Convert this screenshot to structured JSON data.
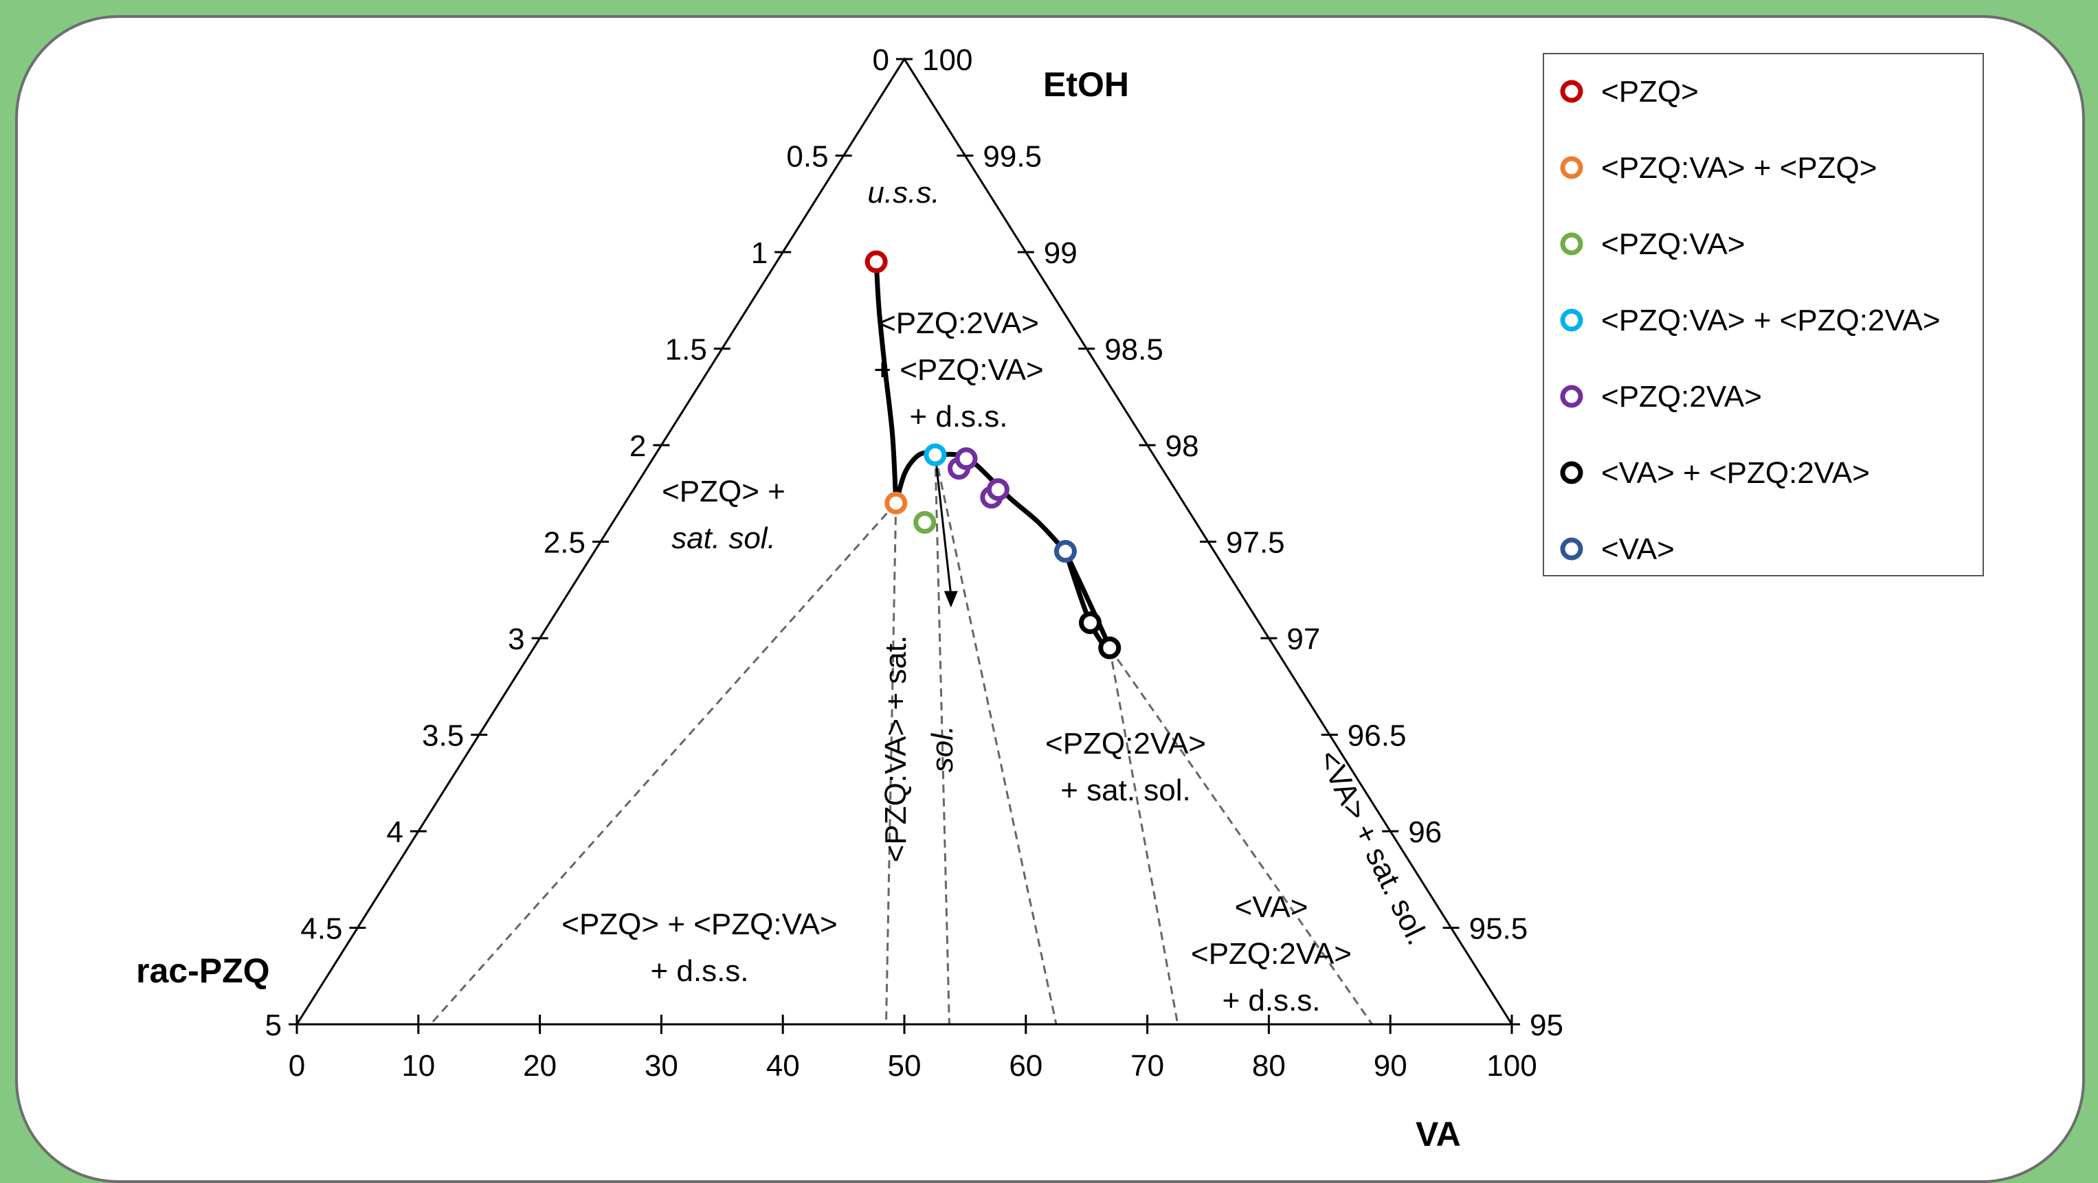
{
  "chart_data": {
    "type": "ternary",
    "vertex_labels": {
      "top": "EtOH",
      "left": "rac-PZQ",
      "right": "VA"
    },
    "bottom_axis_ticks": [
      "0",
      "10",
      "20",
      "30",
      "40",
      "50",
      "60",
      "70",
      "80",
      "90",
      "100"
    ],
    "left_axis_ticks": [
      "0",
      "0.5",
      "1",
      "1.5",
      "2",
      "2.5",
      "3",
      "3.5",
      "4",
      "4.5",
      "5"
    ],
    "right_axis_ticks": [
      "100",
      "99.5",
      "99",
      "98.5",
      "98",
      "97.5",
      "97",
      "96.5",
      "96",
      "95.5",
      "95"
    ],
    "legend": [
      {
        "label": "<PZQ>",
        "color": "#c00000"
      },
      {
        "label": "<PZQ:VA> + <PZQ>",
        "color": "#ed7d31"
      },
      {
        "label": "<PZQ:VA>",
        "color": "#70ad47"
      },
      {
        "label": "<PZQ:VA> + <PZQ:2VA>",
        "color": "#00b0f0"
      },
      {
        "label": "<PZQ:2VA>",
        "color": "#7030a0"
      },
      {
        "label": "<VA> + <PZQ:2VA>",
        "color": "#000000"
      },
      {
        "label": "<VA>",
        "color": "#2f5597"
      }
    ],
    "points": [
      {
        "phase": "<PZQ>",
        "x": 39,
        "y": 1.05
      },
      {
        "phase": "<PZQ:VA> + <PZQ>",
        "x": 48.5,
        "y": 2.3
      },
      {
        "phase": "<PZQ:VA>",
        "x": 53.5,
        "y": 2.4
      },
      {
        "phase": "<PZQ:VA> + <PZQ:2VA>",
        "x": 56.2,
        "y": 2.05
      },
      {
        "phase": "<PZQ:2VA>",
        "x": 60.6,
        "y": 2.12
      },
      {
        "phase": "<PZQ:2VA>",
        "x": 62.3,
        "y": 2.07
      },
      {
        "phase": "<PZQ:2VA>",
        "x": 65.8,
        "y": 2.27
      },
      {
        "phase": "<PZQ:2VA>",
        "x": 67.3,
        "y": 2.23
      },
      {
        "phase": "<VA> + <PZQ:2VA>",
        "x": 76.2,
        "y": 2.92
      },
      {
        "phase": "<VA> + <PZQ:2VA>",
        "x": 77.7,
        "y": 3.05
      },
      {
        "phase": "<VA>",
        "x": 76.0,
        "y": 2.55
      }
    ],
    "solubility_curve": [
      [
        39,
        1.05
      ],
      [
        42,
        1.3
      ],
      [
        45,
        1.6
      ],
      [
        47.5,
        1.95
      ],
      [
        48.5,
        2.3
      ],
      [
        50,
        2.15
      ],
      [
        52,
        2.07
      ],
      [
        54,
        2.04
      ],
      [
        56.2,
        2.05
      ],
      [
        60.6,
        2.05
      ],
      [
        64,
        2.1
      ],
      [
        69,
        2.27
      ],
      [
        73,
        2.4
      ],
      [
        76.0,
        2.55
      ],
      [
        77.7,
        3.05
      ],
      [
        76.2,
        2.92
      ],
      [
        76.0,
        2.55
      ]
    ],
    "tie_lines": [
      {
        "from": [
          48.5,
          2.3
        ],
        "to": [
          11,
          5
        ]
      },
      {
        "from": [
          48.5,
          2.3
        ],
        "to": [
          48.5,
          5
        ]
      },
      {
        "from": [
          56.2,
          2.05
        ],
        "to": [
          53.7,
          5
        ]
      },
      {
        "from": [
          56.2,
          2.05
        ],
        "to": [
          62.5,
          5
        ]
      },
      {
        "from": [
          77.7,
          3.05
        ],
        "to": [
          72.5,
          5
        ]
      },
      {
        "from": [
          77.7,
          3.05
        ],
        "to": [
          88.5,
          5
        ]
      }
    ],
    "arrow": {
      "from": [
        56.2,
        2.05
      ],
      "to": [
        56.8,
        2.82
      ]
    },
    "regions": [
      {
        "lines": [
          "u.s.s."
        ],
        "italic": [
          true
        ]
      },
      {
        "lines": [
          "<PZQ> +",
          "sat. sol."
        ],
        "italic": [
          false,
          true
        ]
      },
      {
        "lines": [
          "<PZQ:2VA>",
          "+ <PZQ:VA>",
          "+ d.s.s."
        ],
        "italic": [
          false,
          false,
          false
        ]
      },
      {
        "lines": [
          "<PZQ> + <PZQ:VA>",
          "+ d.s.s."
        ],
        "italic": [
          false,
          false
        ]
      },
      {
        "lines": [
          "<PZQ:VA> + sat.",
          "sol."
        ],
        "italic": [
          false,
          true
        ]
      },
      {
        "lines": [
          "<PZQ:2VA>",
          "+ sat. sol."
        ],
        "italic": [
          false,
          false
        ]
      },
      {
        "lines": [
          "<VA>",
          "<PZQ:2VA>",
          "+ d.s.s."
        ],
        "italic": [
          false,
          false,
          false
        ]
      },
      {
        "lines": [
          "<VA> + sat. sol."
        ],
        "italic": [
          false
        ]
      }
    ]
  }
}
